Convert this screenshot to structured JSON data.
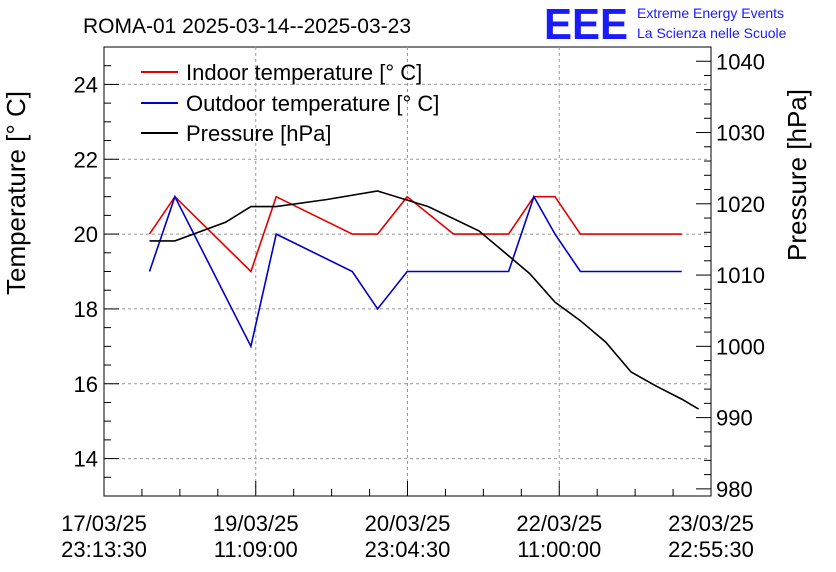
{
  "chart_data": {
    "type": "line",
    "title": "ROMA-01 2025-03-14--2025-03-23",
    "logo": {
      "mark": "EEE",
      "line1": "Extreme Energy Events",
      "line2": "La Scienza nelle Scuole",
      "color": "#1a1aff"
    },
    "ylabel_left": "Temperature [° C]",
    "ylabel_right": "Pressure [hPa]",
    "ylim_left": [
      13,
      25
    ],
    "ylim_right": [
      979,
      1042
    ],
    "yticks_left": [
      "14",
      "16",
      "18",
      "20",
      "22",
      "24"
    ],
    "yticks_right": [
      "980",
      "990",
      "1000",
      "1010",
      "1020",
      "1030",
      "1040"
    ],
    "xticks": [
      {
        "date": "17/03/25",
        "time": "23:13:30"
      },
      {
        "date": "19/03/25",
        "time": "11:09:00"
      },
      {
        "date": "20/03/25",
        "time": "23:04:30"
      },
      {
        "date": "22/03/25",
        "time": "11:00:00"
      },
      {
        "date": "23/03/25",
        "time": "22:55:30"
      }
    ],
    "xlim": [
      "2025-03-17 23:13:30",
      "2025-03-23 22:55:30"
    ],
    "grid": true,
    "legend_position": "top-left",
    "series": [
      {
        "name": "Indoor temperature [° C]",
        "axis": "left",
        "color": "#e00000",
        "points": [
          [
            "2025-03-18 10:00",
            20
          ],
          [
            "2025-03-18 16:00",
            21
          ],
          [
            "2025-03-19 10:00",
            19
          ],
          [
            "2025-03-19 16:00",
            21
          ],
          [
            "2025-03-20 10:00",
            20
          ],
          [
            "2025-03-20 16:00",
            20
          ],
          [
            "2025-03-20 23:00",
            21
          ],
          [
            "2025-03-21 10:00",
            20
          ],
          [
            "2025-03-21 16:00",
            20
          ],
          [
            "2025-03-21 23:00",
            20
          ],
          [
            "2025-03-22 05:00",
            21
          ],
          [
            "2025-03-22 10:00",
            21
          ],
          [
            "2025-03-22 16:00",
            20
          ],
          [
            "2025-03-23 10:00",
            20
          ],
          [
            "2025-03-23 16:00",
            20
          ]
        ]
      },
      {
        "name": "Outdoor temperature [° C]",
        "axis": "left",
        "color": "#0000cc",
        "points": [
          [
            "2025-03-18 10:00",
            19
          ],
          [
            "2025-03-18 16:00",
            21
          ],
          [
            "2025-03-19 10:00",
            17
          ],
          [
            "2025-03-19 16:00",
            20
          ],
          [
            "2025-03-20 10:00",
            19
          ],
          [
            "2025-03-20 16:00",
            18
          ],
          [
            "2025-03-20 23:00",
            19
          ],
          [
            "2025-03-21 10:00",
            19
          ],
          [
            "2025-03-21 16:00",
            19
          ],
          [
            "2025-03-21 23:00",
            19
          ],
          [
            "2025-03-22 05:00",
            21
          ],
          [
            "2025-03-22 10:00",
            20
          ],
          [
            "2025-03-22 16:00",
            19
          ],
          [
            "2025-03-23 10:00",
            19
          ],
          [
            "2025-03-23 16:00",
            19
          ]
        ]
      },
      {
        "name": "Pressure [hPa]",
        "axis": "right",
        "color": "#000000",
        "points": [
          [
            "2025-03-18 10:00",
            1014.8
          ],
          [
            "2025-03-18 16:00",
            1014.8
          ],
          [
            "2025-03-19 04:00",
            1017.4
          ],
          [
            "2025-03-19 10:00",
            1019.6
          ],
          [
            "2025-03-19 16:00",
            1019.6
          ],
          [
            "2025-03-20 04:00",
            1020.6
          ],
          [
            "2025-03-20 16:00",
            1021.8
          ],
          [
            "2025-03-21 04:00",
            1019.6
          ],
          [
            "2025-03-21 16:00",
            1016.2
          ],
          [
            "2025-03-22 04:00",
            1010.2
          ],
          [
            "2025-03-22 10:00",
            1006.2
          ],
          [
            "2025-03-22 16:00",
            1003.6
          ],
          [
            "2025-03-22 22:00",
            1000.6
          ],
          [
            "2025-03-23 04:00",
            996.4
          ],
          [
            "2025-03-23 10:00",
            994.4
          ],
          [
            "2025-03-23 16:00",
            992.6
          ],
          [
            "2025-03-23 20:00",
            991.2
          ]
        ]
      }
    ]
  }
}
